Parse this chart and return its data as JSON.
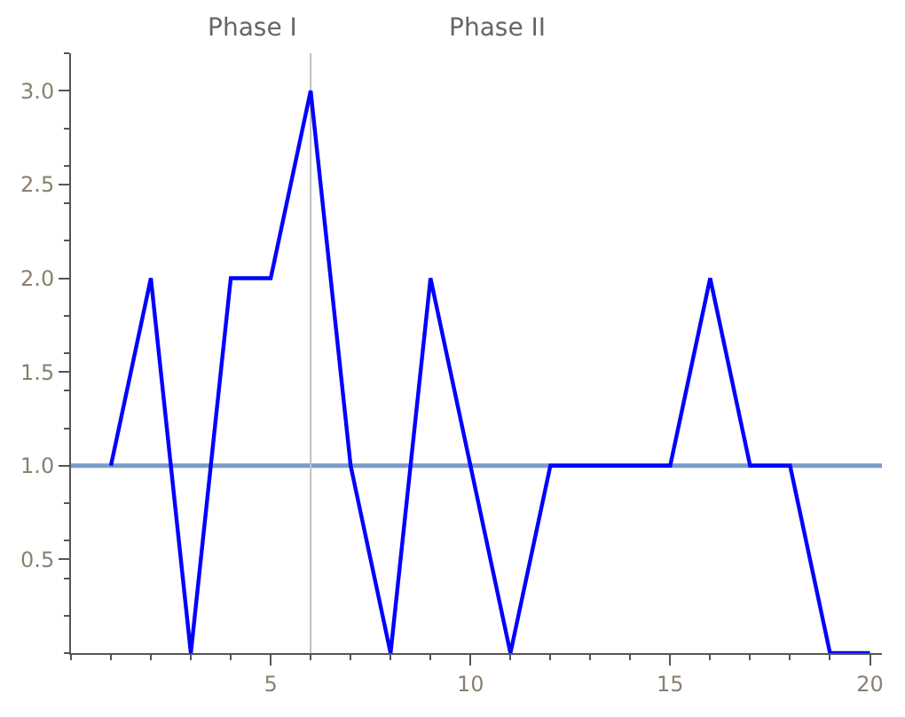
{
  "chart_data": {
    "type": "line",
    "x": [
      1,
      2,
      3,
      4,
      5,
      6,
      7,
      8,
      9,
      10,
      11,
      12,
      13,
      14,
      15,
      16,
      17,
      18,
      19,
      20
    ],
    "series": [
      {
        "color": "#0000ff",
        "values": [
          1,
          2,
          0,
          2,
          2,
          3,
          1,
          0,
          2,
          1,
          0,
          1,
          1,
          1,
          1,
          2,
          1,
          1,
          0,
          0
        ]
      }
    ],
    "xlim": [
      0,
      20.3
    ],
    "ylim": [
      0,
      3.2
    ],
    "xticks": [
      5,
      10,
      15,
      20
    ],
    "yticks": [
      0.5,
      {
        "value": 1,
        "label": "1.0"
      },
      1.5,
      {
        "value": 2,
        "label": "2.0"
      },
      2.5,
      {
        "value": 3,
        "label": "3.0"
      }
    ],
    "ref_lines": [
      {
        "axis": "y",
        "value": 1,
        "color": "#7a9ccc"
      },
      {
        "axis": "x",
        "value": 6,
        "color": "#c0c0c0"
      }
    ],
    "annotations": [
      "Phase I",
      "Phase II"
    ],
    "grid": false,
    "marker": "none",
    "line_style": "solid"
  }
}
